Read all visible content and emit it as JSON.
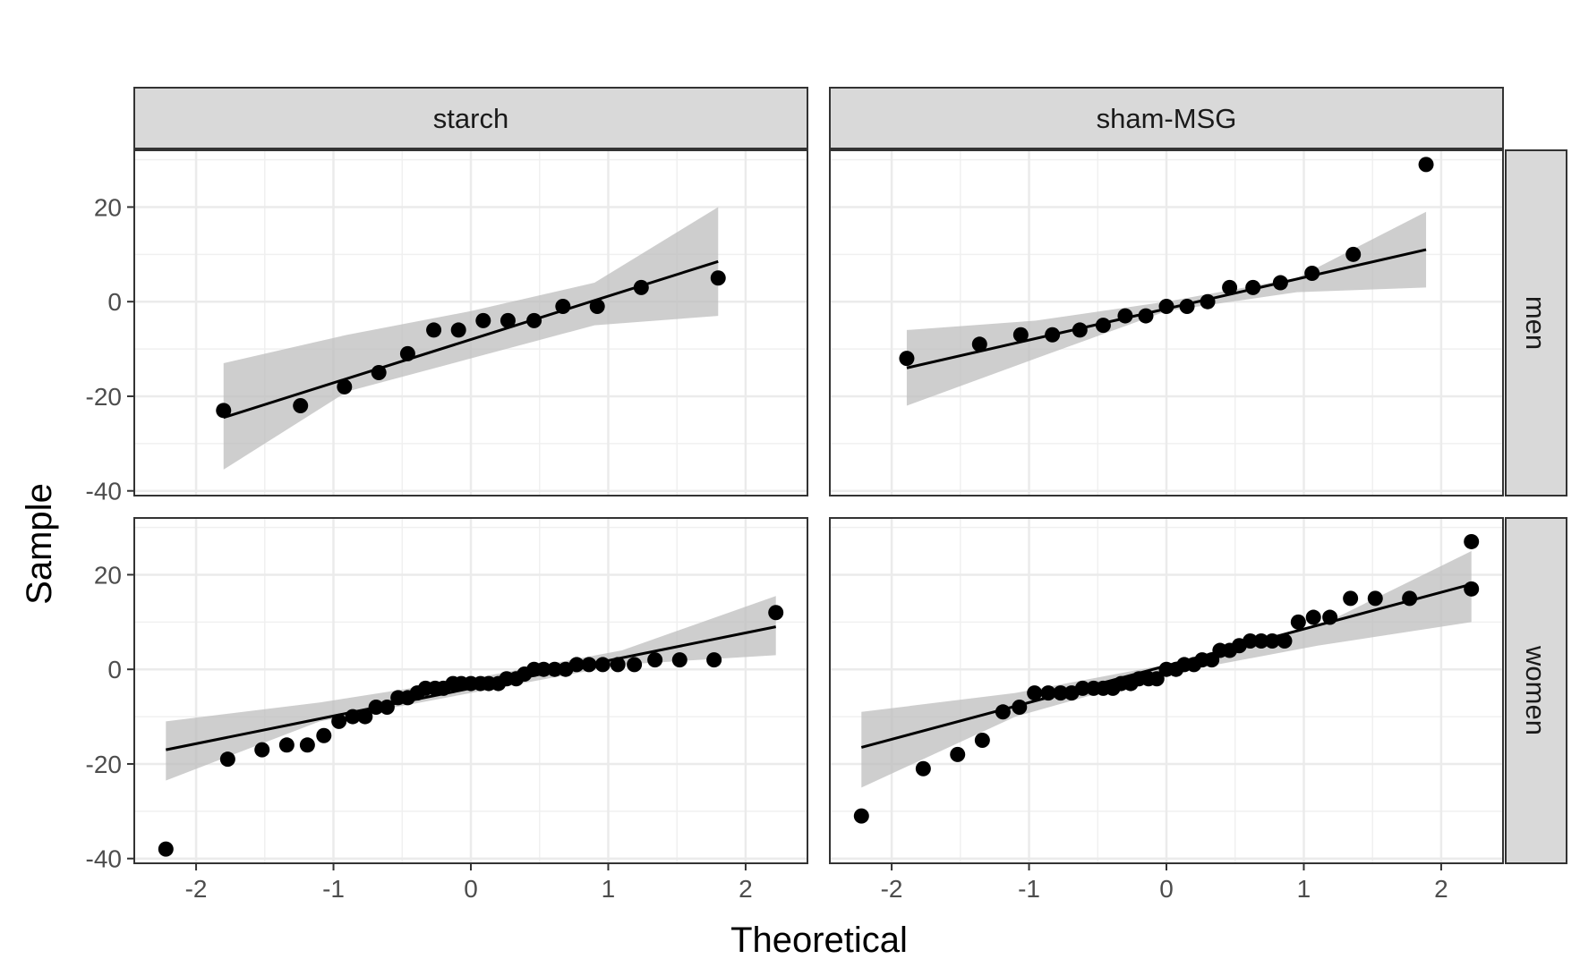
{
  "chart_data": {
    "type": "scatter",
    "xlabel": "Theoretical",
    "ylabel": "Sample",
    "xlim": [
      -2.45,
      2.45
    ],
    "ylim": [
      -41,
      32
    ],
    "x_ticks": [
      -2,
      -1,
      0,
      1,
      2
    ],
    "y_ticks": [
      -40,
      -20,
      0,
      20
    ],
    "columns": [
      "starch",
      "sham-MSG"
    ],
    "rows": [
      "men",
      "women"
    ],
    "grid": true,
    "colors": {
      "point": "#000000",
      "line": "#000000",
      "band": "#bdbdbd",
      "strip_fill": "#d9d9d9"
    },
    "panels": [
      {
        "column": "starch",
        "row": "men",
        "points": [
          [
            -1.8,
            -23
          ],
          [
            -1.24,
            -22
          ],
          [
            -0.92,
            -18
          ],
          [
            -0.67,
            -15
          ],
          [
            -0.46,
            -11
          ],
          [
            -0.27,
            -6
          ],
          [
            -0.09,
            -6
          ],
          [
            0.09,
            -4
          ],
          [
            0.27,
            -4
          ],
          [
            0.46,
            -4
          ],
          [
            0.67,
            -1
          ],
          [
            0.92,
            -1
          ],
          [
            1.24,
            3
          ],
          [
            1.8,
            5
          ]
        ],
        "fit_line": [
          [
            -1.8,
            -24.5
          ],
          [
            1.8,
            8.5
          ]
        ],
        "band_upper": [
          [
            -1.8,
            -13
          ],
          [
            -0.9,
            -7
          ],
          [
            0,
            -2
          ],
          [
            0.9,
            4
          ],
          [
            1.8,
            20
          ]
        ],
        "band_lower": [
          [
            -1.8,
            -35.5
          ],
          [
            -0.9,
            -19
          ],
          [
            0,
            -12
          ],
          [
            0.9,
            -5
          ],
          [
            1.8,
            -3
          ]
        ]
      },
      {
        "column": "sham-MSG",
        "row": "men",
        "points": [
          [
            -1.89,
            -12
          ],
          [
            -1.36,
            -9
          ],
          [
            -1.06,
            -7
          ],
          [
            -0.83,
            -7
          ],
          [
            -0.63,
            -6
          ],
          [
            -0.46,
            -5
          ],
          [
            -0.3,
            -3
          ],
          [
            -0.15,
            -3
          ],
          [
            0,
            -1
          ],
          [
            0.15,
            -1
          ],
          [
            0.3,
            0
          ],
          [
            0.46,
            3
          ],
          [
            0.63,
            3
          ],
          [
            0.83,
            4
          ],
          [
            1.06,
            6
          ],
          [
            1.36,
            10
          ],
          [
            1.89,
            29
          ]
        ],
        "fit_line": [
          [
            -1.89,
            -14
          ],
          [
            1.89,
            11
          ]
        ],
        "band_upper": [
          [
            -1.89,
            -6
          ],
          [
            -0.95,
            -4
          ],
          [
            0,
            0
          ],
          [
            0.95,
            5
          ],
          [
            1.89,
            19
          ]
        ],
        "band_lower": [
          [
            -1.89,
            -22
          ],
          [
            -0.95,
            -12
          ],
          [
            0,
            -2
          ],
          [
            0.95,
            2
          ],
          [
            1.89,
            3
          ]
        ]
      },
      {
        "column": "starch",
        "row": "women",
        "points": [
          [
            -2.22,
            -38
          ],
          [
            -1.77,
            -19
          ],
          [
            -1.52,
            -17
          ],
          [
            -1.34,
            -16
          ],
          [
            -1.19,
            -16
          ],
          [
            -1.07,
            -14
          ],
          [
            -0.96,
            -11
          ],
          [
            -0.86,
            -10
          ],
          [
            -0.77,
            -10
          ],
          [
            -0.69,
            -8
          ],
          [
            -0.61,
            -8
          ],
          [
            -0.53,
            -6
          ],
          [
            -0.46,
            -6
          ],
          [
            -0.39,
            -5
          ],
          [
            -0.33,
            -4
          ],
          [
            -0.26,
            -4
          ],
          [
            -0.2,
            -4
          ],
          [
            -0.13,
            -3
          ],
          [
            -0.07,
            -3
          ],
          [
            0,
            -3
          ],
          [
            0.07,
            -3
          ],
          [
            0.13,
            -3
          ],
          [
            0.2,
            -3
          ],
          [
            0.26,
            -2
          ],
          [
            0.33,
            -2
          ],
          [
            0.39,
            -1
          ],
          [
            0.46,
            0
          ],
          [
            0.53,
            0
          ],
          [
            0.61,
            0
          ],
          [
            0.69,
            0
          ],
          [
            0.77,
            1
          ],
          [
            0.86,
            1
          ],
          [
            0.96,
            1
          ],
          [
            1.07,
            1
          ],
          [
            1.19,
            1
          ],
          [
            1.34,
            2
          ],
          [
            1.52,
            2
          ],
          [
            1.77,
            2
          ],
          [
            2.22,
            12
          ]
        ],
        "fit_line": [
          [
            -2.22,
            -17
          ],
          [
            2.22,
            9
          ]
        ],
        "band_upper": [
          [
            -2.22,
            -11
          ],
          [
            -1.1,
            -7
          ],
          [
            0,
            -2
          ],
          [
            1.1,
            4
          ],
          [
            2.22,
            15.5
          ]
        ],
        "band_lower": [
          [
            -2.22,
            -23.5
          ],
          [
            -1.1,
            -11
          ],
          [
            0,
            -5
          ],
          [
            1.1,
            1
          ],
          [
            2.22,
            3
          ]
        ]
      },
      {
        "column": "sham-MSG",
        "row": "women",
        "points": [
          [
            -2.22,
            -31
          ],
          [
            -1.77,
            -21
          ],
          [
            -1.52,
            -18
          ],
          [
            -1.34,
            -15
          ],
          [
            -1.19,
            -9
          ],
          [
            -1.07,
            -8
          ],
          [
            -0.96,
            -5
          ],
          [
            -0.86,
            -5
          ],
          [
            -0.77,
            -5
          ],
          [
            -0.69,
            -5
          ],
          [
            -0.61,
            -4
          ],
          [
            -0.53,
            -4
          ],
          [
            -0.46,
            -4
          ],
          [
            -0.39,
            -4
          ],
          [
            -0.33,
            -3
          ],
          [
            -0.26,
            -3
          ],
          [
            -0.2,
            -2
          ],
          [
            -0.13,
            -2
          ],
          [
            -0.07,
            -2
          ],
          [
            0,
            0
          ],
          [
            0.07,
            0
          ],
          [
            0.13,
            1
          ],
          [
            0.2,
            1
          ],
          [
            0.26,
            2
          ],
          [
            0.33,
            2
          ],
          [
            0.39,
            4
          ],
          [
            0.46,
            4
          ],
          [
            0.53,
            5
          ],
          [
            0.61,
            6
          ],
          [
            0.69,
            6
          ],
          [
            0.77,
            6
          ],
          [
            0.86,
            6
          ],
          [
            0.96,
            10
          ],
          [
            1.07,
            11
          ],
          [
            1.19,
            11
          ],
          [
            1.34,
            15
          ],
          [
            1.52,
            15
          ],
          [
            1.77,
            15
          ],
          [
            2.22,
            17
          ],
          [
            2.22,
            27
          ]
        ],
        "fit_line": [
          [
            -2.22,
            -16.5
          ],
          [
            2.22,
            18
          ]
        ],
        "band_upper": [
          [
            -2.22,
            -9
          ],
          [
            -1.1,
            -5
          ],
          [
            0,
            1
          ],
          [
            1.1,
            9
          ],
          [
            2.22,
            25
          ]
        ],
        "band_lower": [
          [
            -2.22,
            -25
          ],
          [
            -1.1,
            -10
          ],
          [
            0,
            -1
          ],
          [
            1.1,
            5
          ],
          [
            2.22,
            10
          ]
        ]
      }
    ]
  }
}
